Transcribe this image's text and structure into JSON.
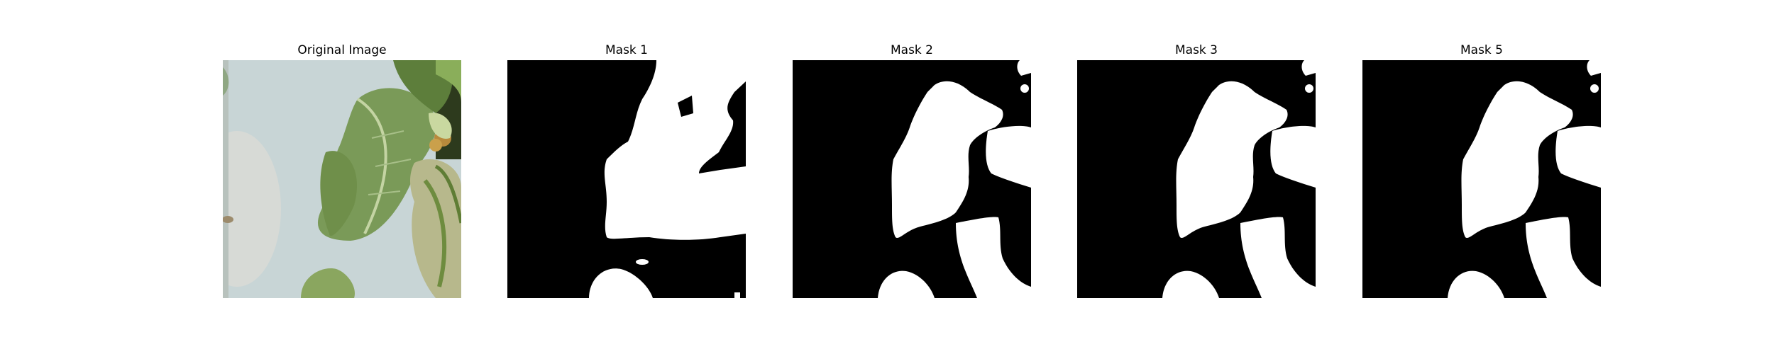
{
  "figure": {
    "panels": [
      {
        "title": "Original Image",
        "content": "photo of green and variegated leaves on a light background"
      },
      {
        "title": "Mask 1"
      },
      {
        "title": "Mask 2"
      },
      {
        "title": "Mask 3"
      },
      {
        "title": "Mask 5"
      }
    ]
  }
}
